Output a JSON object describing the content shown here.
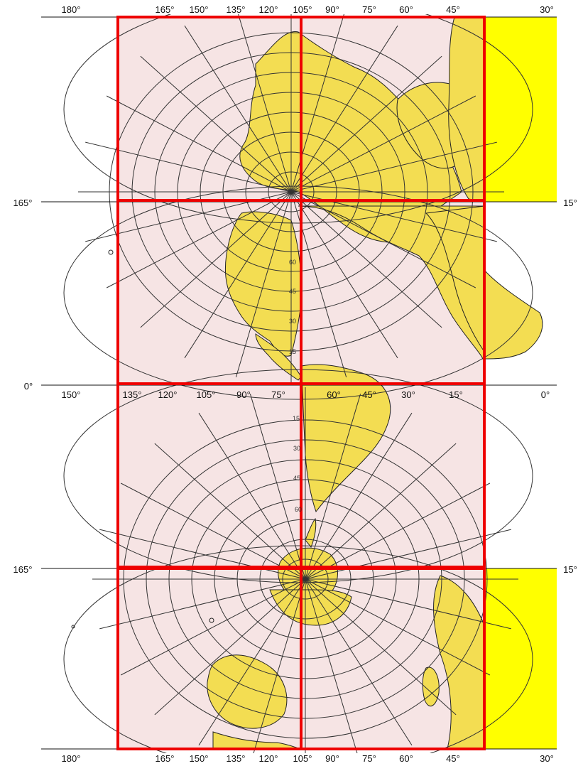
{
  "map": {
    "projection_style": "polar-centered lune tiles",
    "land_color": "#f3dd52",
    "highlight_color": "#ffff00",
    "ocean_tint": "#f6e4e4",
    "outline_color": "#cc0000"
  },
  "labels": {
    "top": [
      "180°",
      "165°",
      "150°",
      "135°",
      "120°",
      "105°",
      "90°",
      "75°",
      "60°",
      "45°",
      "30°"
    ],
    "bottom": [
      "180°",
      "165°",
      "150°",
      "135°",
      "120°",
      "105°",
      "90°",
      "75°",
      "60°",
      "45°",
      "30°"
    ],
    "row3": [
      "150°",
      "135°",
      "120°",
      "105°",
      "90°",
      "75°",
      "60°",
      "45°",
      "30°",
      "15°",
      "0°"
    ],
    "left": [
      "165°",
      "0°",
      "165°"
    ],
    "right": [
      "15°",
      "15°"
    ],
    "lat": [
      "60",
      "45",
      "30",
      "15",
      "15",
      "30",
      "45",
      "60"
    ]
  }
}
